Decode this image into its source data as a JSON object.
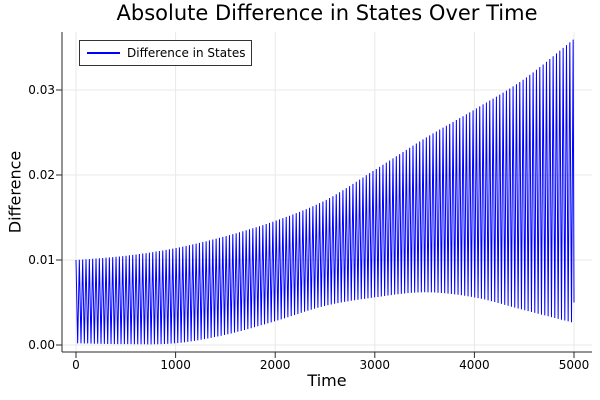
{
  "chart_data": {
    "type": "line",
    "title": "Absolute Difference in States Over Time",
    "xlabel": "Time",
    "ylabel": "Difference",
    "grid": true,
    "legend_position": "top-left",
    "legend": [
      {
        "label": "Difference in States",
        "color": "#0000ff"
      }
    ],
    "x_ticks": {
      "values": [
        0,
        1000,
        2000,
        3000,
        4000,
        5000
      ],
      "labels": [
        "0",
        "1000",
        "2000",
        "3000",
        "4000",
        "5000"
      ]
    },
    "y_ticks": {
      "values": [
        0,
        0.01,
        0.02,
        0.03
      ],
      "labels": [
        "0.00",
        "0.01",
        "0.02",
        "0.03"
      ]
    },
    "xlim": [
      0,
      5000
    ],
    "ylim": [
      0,
      0.0368
    ],
    "series": [
      {
        "name": "Difference in States",
        "color": "#0000ff",
        "style": "dense-oscillation-between-envelopes",
        "oscillation_period": 33.5,
        "envelope_t": [
          0,
          500,
          1000,
          1500,
          2000,
          2500,
          3000,
          3500,
          4000,
          4500,
          5000
        ],
        "envelope_top": [
          0.01,
          0.0105,
          0.0114,
          0.0128,
          0.0146,
          0.017,
          0.0206,
          0.0243,
          0.0277,
          0.0313,
          0.036
        ],
        "envelope_bottom": [
          0.0002,
          0.0001,
          0.0002,
          0.0012,
          0.0028,
          0.0046,
          0.0056,
          0.0062,
          0.0056,
          0.0041,
          0.0026
        ],
        "start_value": 0.01,
        "end_value": 0.005
      }
    ],
    "colors": {
      "grid": "#e8e8e8",
      "spine": "#2a2a2a",
      "text": "#000000",
      "background": "#ffffff"
    }
  }
}
